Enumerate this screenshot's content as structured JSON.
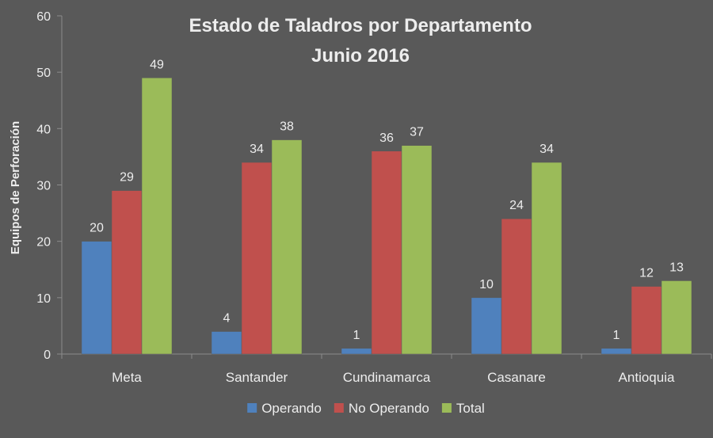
{
  "chart_data": {
    "type": "bar",
    "title": "Estado de Taladros por Departamento",
    "subtitle": "Junio 2016",
    "xlabel": "",
    "ylabel": "Equipos de Perforación",
    "ylim": [
      0,
      60
    ],
    "yticks": [
      0,
      10,
      20,
      30,
      40,
      50,
      60
    ],
    "grid": false,
    "legend_position": "bottom",
    "categories": [
      "Meta",
      "Santander",
      "Cundinamarca",
      "Casanare",
      "Antioquia"
    ],
    "series": [
      {
        "name": "Operando",
        "color": "#4f81bd",
        "values": [
          20,
          4,
          1,
          10,
          1
        ]
      },
      {
        "name": "No Operando",
        "color": "#c0504d",
        "values": [
          29,
          34,
          36,
          24,
          12
        ]
      },
      {
        "name": "Total",
        "color": "#9bbb59",
        "values": [
          49,
          38,
          37,
          34,
          13
        ]
      }
    ],
    "data_labels": true
  },
  "colors": {
    "background": "#595959",
    "text": "#ededed",
    "axis": "#8c8c8c"
  }
}
